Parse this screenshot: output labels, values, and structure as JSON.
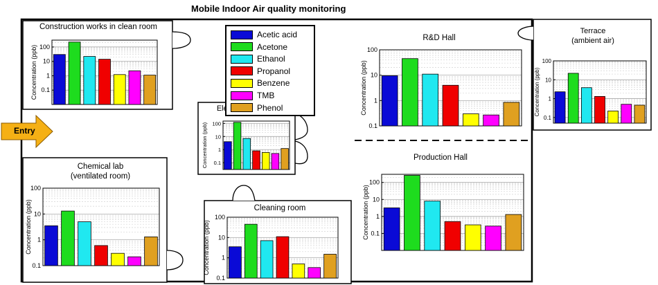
{
  "header": {
    "title": "Mobile Indoor Air quality monitoring"
  },
  "entry": {
    "label": "Entry"
  },
  "colors": {
    "series": [
      "#0a0ad6",
      "#1edc1e",
      "#20e8f0",
      "#f00000",
      "#ffff00",
      "#ff00ff",
      "#e0a020"
    ],
    "arrow": "#f5b015"
  },
  "legend": [
    "Acetic acid",
    "Acetone",
    "Ethanol",
    "Propanol",
    "Benzene",
    "TMB",
    "Phenol"
  ],
  "chart_data": [
    {
      "type": "bar",
      "title": "Construction works in clean room",
      "subtitle": "",
      "ylabel": "Concentration (ppb)",
      "yscale": "log",
      "ylim": [
        0.01,
        300
      ],
      "yticks": [
        "100",
        "10",
        "1",
        "0.1"
      ],
      "categories": [
        "Acetic acid",
        "Acetone",
        "Ethanol",
        "Propanol",
        "Benzene",
        "TMB",
        "Phenol"
      ],
      "values": [
        30,
        220,
        22,
        14,
        1.2,
        2.2,
        1.1
      ]
    },
    {
      "type": "bar",
      "title": "Elevator",
      "subtitle": "",
      "ylabel": "Concentration (ppb)",
      "yscale": "log",
      "ylim": [
        0.03,
        150
      ],
      "yticks": [
        "100",
        "10",
        "1",
        "0.1"
      ],
      "categories": [
        "Acetic acid",
        "Acetone",
        "Ethanol",
        "Propanol",
        "Benzene",
        "TMB",
        "Phenol"
      ],
      "values": [
        4,
        120,
        7,
        0.8,
        0.6,
        0.5,
        1.2
      ]
    },
    {
      "type": "bar",
      "title": "Chemical lab",
      "subtitle": "(ventilated room)",
      "ylabel": "Concentration (ppb)",
      "yscale": "log",
      "ylim": [
        0.1,
        100
      ],
      "yticks": [
        "100",
        "10",
        "1",
        "0.1"
      ],
      "categories": [
        "Acetic acid",
        "Acetone",
        "Ethanol",
        "Propanol",
        "Benzene",
        "TMB",
        "Phenol"
      ],
      "values": [
        3.5,
        13,
        5,
        0.6,
        0.3,
        0.22,
        1.3
      ]
    },
    {
      "type": "bar",
      "title": "Cleaning room",
      "subtitle": "",
      "ylabel": "Concentration (ppb)",
      "yscale": "log",
      "ylim": [
        0.1,
        100
      ],
      "yticks": [
        "100",
        "10",
        "1",
        "0.1"
      ],
      "categories": [
        "Acetic acid",
        "Acetone",
        "Ethanol",
        "Propanol",
        "Benzene",
        "TMB",
        "Phenol"
      ],
      "values": [
        3.5,
        45,
        7,
        11,
        0.5,
        0.33,
        1.5
      ]
    },
    {
      "type": "bar",
      "title": "R&D Hall",
      "subtitle": "",
      "ylabel": "Concentration (ppb)",
      "yscale": "log",
      "ylim": [
        0.1,
        100
      ],
      "yticks": [
        "100",
        "10",
        "1",
        "0.1"
      ],
      "categories": [
        "Acetic acid",
        "Acetone",
        "Ethanol",
        "Propanol",
        "Benzene",
        "TMB",
        "Phenol"
      ],
      "values": [
        9.5,
        45,
        11,
        4,
        0.3,
        0.27,
        0.85
      ]
    },
    {
      "type": "bar",
      "title": "Production Hall",
      "subtitle": "",
      "ylabel": "Concentration (ppb)",
      "yscale": "log",
      "ylim": [
        0.01,
        300
      ],
      "yticks": [
        "100",
        "10",
        "1",
        "0.1"
      ],
      "categories": [
        "Acetic acid",
        "Acetone",
        "Ethanol",
        "Propanol",
        "Benzene",
        "TMB",
        "Phenol"
      ],
      "values": [
        3.2,
        260,
        8,
        0.5,
        0.32,
        0.27,
        1.3
      ]
    },
    {
      "type": "bar",
      "title": "Terrace",
      "subtitle": "(ambient air)",
      "ylabel": "Concentration (ppb)",
      "yscale": "log",
      "ylim": [
        0.05,
        100
      ],
      "yticks": [
        "100",
        "10",
        "1",
        "0.1"
      ],
      "categories": [
        "Acetic acid",
        "Acetone",
        "Ethanol",
        "Propanol",
        "Benzene",
        "TMB",
        "Phenol"
      ],
      "values": [
        2.3,
        22,
        3.8,
        1.3,
        0.22,
        0.5,
        0.45
      ]
    }
  ]
}
